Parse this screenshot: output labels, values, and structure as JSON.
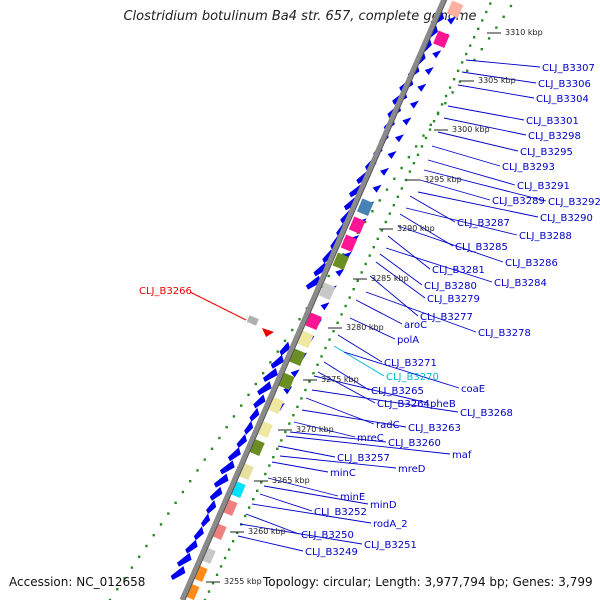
{
  "title": "Clostridium botulinum Ba4 str. 657, complete genome",
  "accession": "Accession: NC_012658",
  "topology": "Topology: circular; Length: 3,977,794 bp; Genes: 3,799",
  "colors": {
    "gene_blue": "#0000ee",
    "backbone": "#808080",
    "tick_green": "#2a8a2a",
    "label_blue": "#0000c8",
    "highlight_red": "#ee0000",
    "cyan_label": "#00b8d8"
  },
  "ticks": [
    {
      "label": "3310 kbp"
    },
    {
      "label": "3305 kbp"
    },
    {
      "label": "3300 kbp"
    },
    {
      "label": "3295 kbp"
    },
    {
      "label": "3290 kbp"
    },
    {
      "label": "3285 kbp"
    },
    {
      "label": "3280 kbp"
    },
    {
      "label": "3275 kbp"
    },
    {
      "label": "3270 kbp"
    },
    {
      "label": "3265 kbp"
    },
    {
      "label": "3260 kbp"
    },
    {
      "label": "3255 kbp"
    }
  ],
  "highlight_gene": {
    "label": "CLJ_B3266"
  },
  "gene_labels": [
    {
      "label": "CLJ_B3307"
    },
    {
      "label": "CLJ_B3306"
    },
    {
      "label": "CLJ_B3304"
    },
    {
      "label": "CLJ_B3301"
    },
    {
      "label": "CLJ_B3298"
    },
    {
      "label": "CLJ_B3295"
    },
    {
      "label": "CLJ_B3293"
    },
    {
      "label": "CLJ_B3291"
    },
    {
      "label": "CLJ_B3292"
    },
    {
      "label": "CLJ_B3289"
    },
    {
      "label": "CLJ_B3290"
    },
    {
      "label": "CLJ_B3287"
    },
    {
      "label": "CLJ_B3288"
    },
    {
      "label": "CLJ_B3285"
    },
    {
      "label": "CLJ_B3286"
    },
    {
      "label": "CLJ_B3281"
    },
    {
      "label": "CLJ_B3284"
    },
    {
      "label": "CLJ_B3280"
    },
    {
      "label": "CLJ_B3279"
    },
    {
      "label": "CLJ_B3277"
    },
    {
      "label": "CLJ_B3278"
    },
    {
      "label": "aroC"
    },
    {
      "label": "polA"
    },
    {
      "label": "CLJ_B3271"
    },
    {
      "label": "CLJ_B3270"
    },
    {
      "label": "coaE"
    },
    {
      "label": "CLJ_B3265"
    },
    {
      "label": "CLJ_B3264"
    },
    {
      "label": "pheB"
    },
    {
      "label": "CLJ_B3268"
    },
    {
      "label": "radC"
    },
    {
      "label": "CLJ_B3263"
    },
    {
      "label": "mreC"
    },
    {
      "label": "CLJ_B3260"
    },
    {
      "label": "maf"
    },
    {
      "label": "CLJ_B3257"
    },
    {
      "label": "mreD"
    },
    {
      "label": "minC"
    },
    {
      "label": "minE"
    },
    {
      "label": "minD"
    },
    {
      "label": "CLJ_B3252"
    },
    {
      "label": "rodA_2"
    },
    {
      "label": "CLJ_B3250"
    },
    {
      "label": "CLJ_B3251"
    },
    {
      "label": "CLJ_B3249"
    }
  ]
}
